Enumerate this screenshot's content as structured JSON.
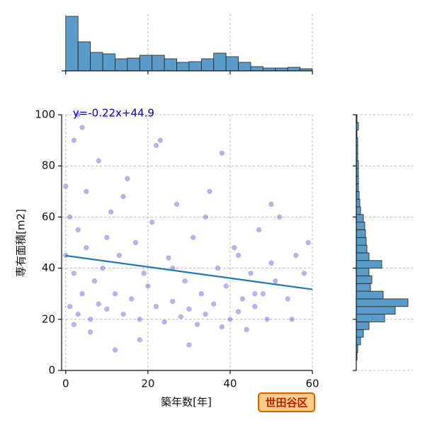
{
  "chart_data": [
    {
      "type": "scatter",
      "xlabel": "築年数[年]",
      "ylabel": "専有面積[m2]",
      "badge": "世田谷区",
      "xlim": [
        -1,
        60
      ],
      "ylim": [
        0,
        100
      ],
      "xticks": [
        0,
        20,
        40,
        60
      ],
      "yticks": [
        0,
        20,
        40,
        60,
        80,
        100
      ],
      "grid": true,
      "color": "#2a2ac0",
      "x": [
        0,
        1,
        1,
        2,
        2,
        3,
        3,
        4,
        5,
        5,
        6,
        7,
        8,
        8,
        9,
        10,
        11,
        12,
        13,
        14,
        15,
        16,
        17,
        18,
        19,
        20,
        21,
        22,
        23,
        24,
        25,
        26,
        27,
        28,
        29,
        30,
        31,
        32,
        33,
        34,
        35,
        36,
        37,
        38,
        39,
        40,
        41,
        42,
        43,
        44,
        45,
        46,
        47,
        48,
        49,
        50,
        51,
        52,
        54,
        56,
        58,
        59,
        0,
        2,
        4,
        6,
        10,
        14,
        18,
        22,
        26,
        30,
        34,
        38,
        42,
        46,
        50,
        55,
        3,
        12
      ],
      "y": [
        45,
        25,
        60,
        38,
        90,
        22,
        55,
        30,
        70,
        48,
        20,
        35,
        26,
        82,
        40,
        24,
        62,
        30,
        45,
        22,
        75,
        28,
        50,
        20,
        38,
        33,
        58,
        25,
        90,
        19,
        44,
        27,
        65,
        21,
        35,
        24,
        52,
        18,
        30,
        22,
        70,
        26,
        40,
        17,
        33,
        20,
        48,
        23,
        28,
        16,
        38,
        25,
        55,
        30,
        20,
        42,
        35,
        60,
        28,
        45,
        38,
        50,
        72,
        18,
        95,
        15,
        52,
        68,
        12,
        88,
        40,
        10,
        60,
        85,
        45,
        30,
        65,
        20,
        100,
        8
      ],
      "regression": {
        "slope": -0.22,
        "intercept": 44.9,
        "label": "y=-0.22x+44.9",
        "color": "#1f77b4",
        "label_color": "#0000bb"
      }
    },
    {
      "type": "histogram",
      "orientation": "vertical",
      "color": "#5a9bc9",
      "bins": [
        0,
        3,
        6,
        9,
        12,
        15,
        18,
        21,
        24,
        27,
        30,
        33,
        36,
        39,
        42,
        45,
        48,
        51,
        54,
        57,
        60
      ],
      "values": [
        770,
        410,
        260,
        240,
        170,
        180,
        220,
        220,
        170,
        120,
        130,
        170,
        250,
        200,
        120,
        60,
        40,
        40,
        50,
        30
      ],
      "xlim": [
        -1,
        60
      ],
      "ylim": [
        0,
        800
      ],
      "xticks": [
        0,
        20,
        40,
        60
      ],
      "grid": true
    },
    {
      "type": "histogram",
      "orientation": "horizontal",
      "color": "#5a9bc9",
      "bins": [
        4,
        7,
        10,
        13,
        16,
        19,
        22,
        25,
        28,
        31,
        34,
        37,
        40,
        43,
        46,
        49,
        52,
        55,
        58,
        61,
        64,
        67,
        70,
        73,
        76,
        79,
        82,
        85,
        88,
        91,
        94,
        97,
        100
      ],
      "values": [
        10,
        20,
        60,
        100,
        180,
        400,
        550,
        730,
        380,
        200,
        220,
        180,
        360,
        180,
        150,
        140,
        130,
        120,
        100,
        60,
        50,
        40,
        30,
        30,
        30,
        30,
        20,
        20,
        20,
        10,
        30,
        10
      ],
      "ylim": [
        0,
        100
      ],
      "xlim": [
        0,
        800
      ],
      "yticks": [
        0,
        20,
        40,
        60,
        80,
        100
      ],
      "grid": true
    }
  ]
}
